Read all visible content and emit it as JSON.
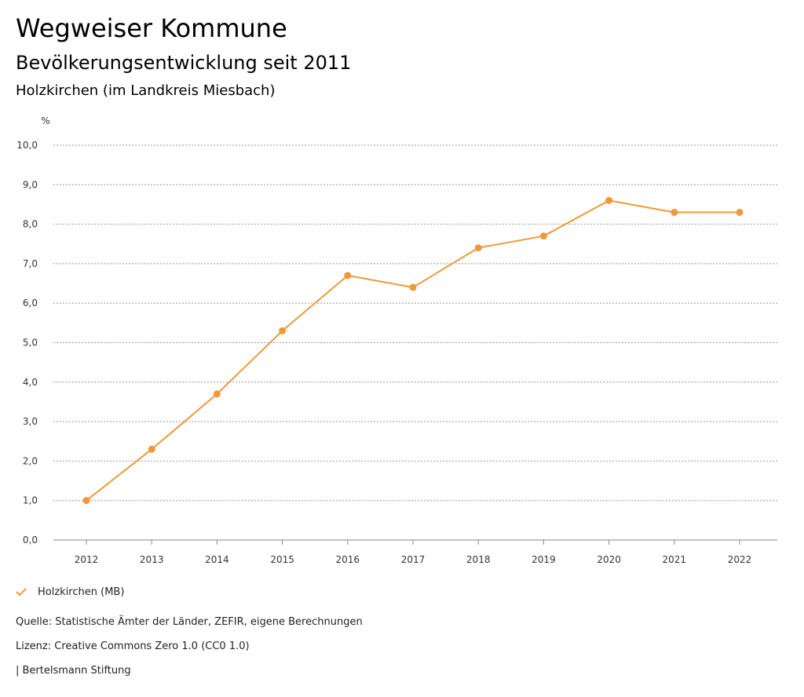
{
  "header": {
    "title": "Wegweiser Kommune",
    "subtitle": "Bevölkerungsentwicklung seit 2011",
    "region": "Holzkirchen (im Landkreis Miesbach)"
  },
  "chart_data": {
    "type": "line",
    "title": "Bevölkerungsentwicklung seit 2011",
    "ylabel": "%",
    "xlabel": "",
    "ylim": [
      0,
      10
    ],
    "y_ticks": [
      "0,0",
      "1,0",
      "2,0",
      "3,0",
      "4,0",
      "5,0",
      "6,0",
      "7,0",
      "8,0",
      "9,0",
      "10,0"
    ],
    "grid": true,
    "categories": [
      "2012",
      "2013",
      "2014",
      "2015",
      "2016",
      "2017",
      "2018",
      "2019",
      "2020",
      "2021",
      "2022"
    ],
    "series": [
      {
        "name": "Holzkirchen (MB)",
        "color": "#f0993a",
        "values": [
          1.0,
          2.3,
          3.7,
          5.3,
          6.7,
          6.4,
          7.4,
          7.7,
          8.6,
          8.3,
          8.3
        ]
      }
    ],
    "legend_position": "bottom-left"
  },
  "footer": {
    "source": "Quelle: Statistische Ämter der Länder, ZEFIR, eigene Berechnungen",
    "license": "Lizenz: Creative Commons Zero 1.0 (CC0 1.0)",
    "publisher": "| Bertelsmann Stiftung"
  }
}
